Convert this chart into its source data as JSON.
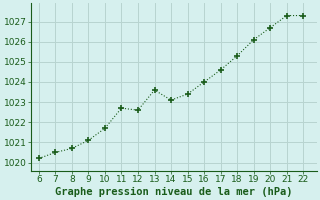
{
  "x": [
    6,
    7,
    8,
    9,
    10,
    11,
    12,
    13,
    14,
    15,
    16,
    17,
    18,
    19,
    20,
    21,
    22
  ],
  "y": [
    1020.2,
    1020.5,
    1020.7,
    1021.1,
    1021.7,
    1022.7,
    1022.6,
    1023.6,
    1023.1,
    1023.4,
    1024.0,
    1024.6,
    1025.3,
    1026.1,
    1026.7,
    1027.3,
    1027.3
  ],
  "xlim": [
    5.5,
    22.8
  ],
  "ylim": [
    1019.6,
    1027.9
  ],
  "xticks": [
    6,
    7,
    8,
    9,
    10,
    11,
    12,
    13,
    14,
    15,
    16,
    17,
    18,
    19,
    20,
    21,
    22
  ],
  "yticks": [
    1020,
    1021,
    1022,
    1023,
    1024,
    1025,
    1026,
    1027
  ],
  "xlabel": "Graphe pression niveau de la mer (hPa)",
  "line_color": "#1a5c1a",
  "marker": "+",
  "marker_size": 4,
  "marker_lw": 1.2,
  "line_width": 0.8,
  "bg_color": "#d6f0ee",
  "grid_color": "#b8d4d0",
  "tick_color": "#1a5c1a",
  "label_color": "#1a5c1a",
  "xlabel_fontsize": 7.5,
  "tick_fontsize": 6.5
}
